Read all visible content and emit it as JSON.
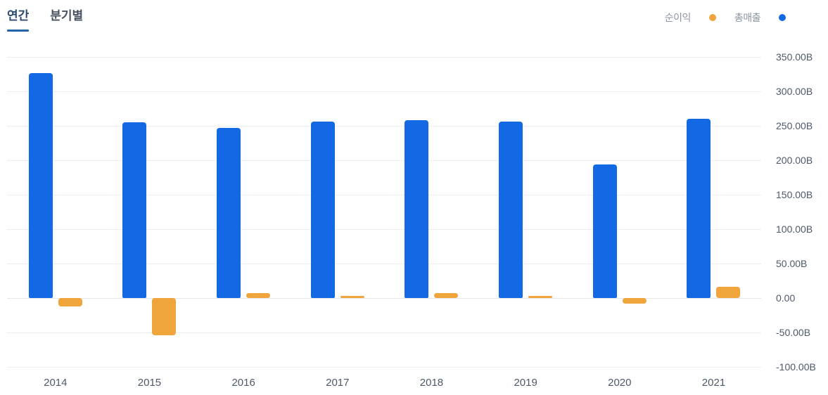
{
  "tabs": [
    {
      "label": "연간",
      "active": true
    },
    {
      "label": "분기별",
      "active": false
    }
  ],
  "legend": [
    {
      "label": "순이익",
      "color": "#f0a43c"
    },
    {
      "label": "총매출",
      "color": "#1368e3"
    }
  ],
  "colors": {
    "revenue_blue": "#1368e3",
    "net_income_orange": "#f0a43c",
    "gridline": "#eceef1",
    "axis_text": "#4e5968",
    "legend_text": "#8b95a1",
    "tab_active": "#2e4a6e",
    "tab_inactive": "#47515f",
    "tab_underline": "#2563a8"
  },
  "chart_data": {
    "type": "bar",
    "categories": [
      "2014",
      "2015",
      "2016",
      "2017",
      "2018",
      "2019",
      "2020",
      "2021"
    ],
    "series": [
      {
        "name": "총매출",
        "slot": "left",
        "color": "#1368e3",
        "values": [
          327,
          255,
          247,
          256,
          258,
          256,
          194,
          260
        ]
      },
      {
        "name": "순이익",
        "slot": "right",
        "color": "#f0a43c",
        "values": [
          -12,
          -54,
          7,
          3.5,
          7.5,
          3.5,
          -8,
          16
        ]
      }
    ],
    "unit": "B",
    "ylim": [
      -100,
      350
    ],
    "ytick_step": 50,
    "ytick_labels": [
      "350.00B",
      "300.00B",
      "250.00B",
      "200.00B",
      "150.00B",
      "100.00B",
      "50.00B",
      "0.00",
      "-50.00B",
      "-100.00B"
    ],
    "grid": true,
    "legend_position": "top-right",
    "title": "",
    "xlabel": "",
    "ylabel": ""
  }
}
